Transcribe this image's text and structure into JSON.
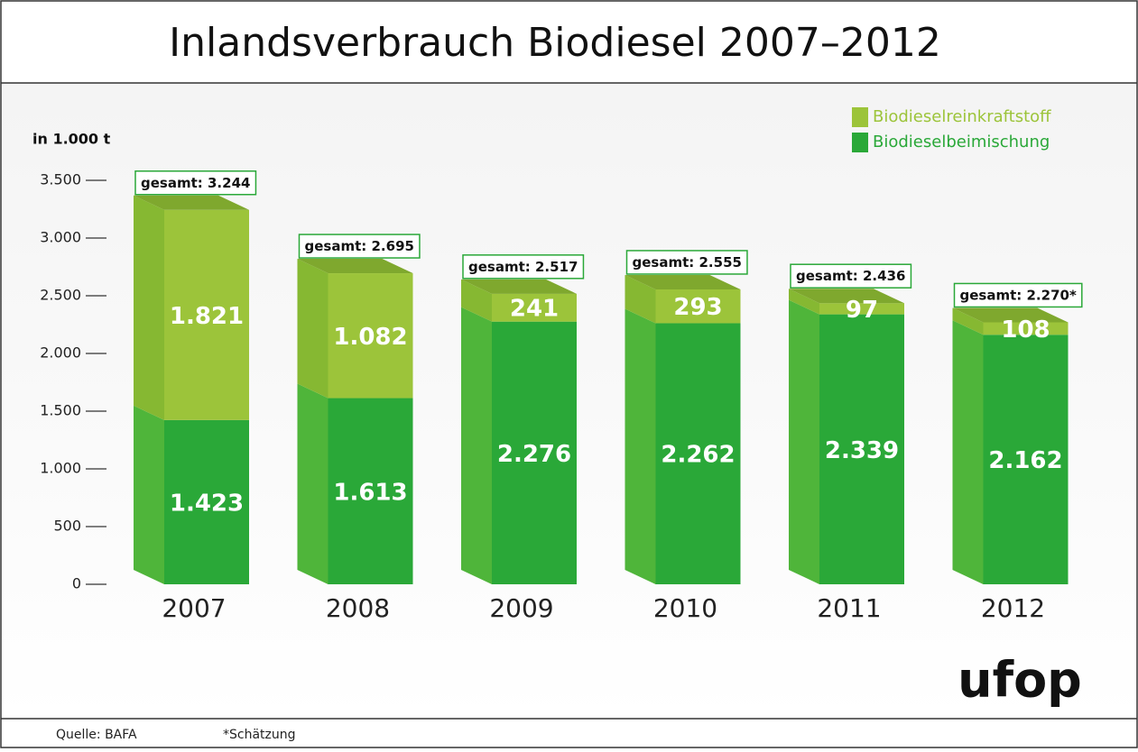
{
  "chart_data": {
    "type": "stacked-bar-3d",
    "title": "Inlandsverbrauch Biodiesel 2007–2012",
    "y_label": "in 1.000 t",
    "categories": [
      "2007",
      "2008",
      "2009",
      "2010",
      "2011",
      "2012"
    ],
    "series": [
      {
        "name": "Biodieselbeimischung",
        "color": "#2aa838",
        "side_color": "#4fb53a",
        "values": [
          1423,
          1613,
          2276,
          2262,
          2339,
          2162
        ],
        "value_labels": [
          "1.423",
          "1.613",
          "2.276",
          "2.262",
          "2.339",
          "2.162"
        ]
      },
      {
        "name": "Biodieselreinkraftstoff",
        "color": "#9cc43a",
        "side_color": "#86b832",
        "top_color": "#7fa82e",
        "values": [
          1821,
          1082,
          241,
          293,
          97,
          108
        ],
        "value_labels": [
          "1.821",
          "1.082",
          "241",
          "293",
          "97",
          "108"
        ]
      }
    ],
    "totals": {
      "prefix": "gesamt:",
      "values": [
        3244,
        2695,
        2517,
        2555,
        2436,
        2270
      ],
      "value_labels": [
        "3.244",
        "2.695",
        "2.517",
        "2.555",
        "2.436",
        "2.270*"
      ]
    },
    "ylim": [
      0,
      3500
    ],
    "yticks": [
      0,
      500,
      {
        "value": 1000,
        "label": "1.000"
      },
      {
        "value": 1500,
        "label": "1.500"
      },
      {
        "value": 2000,
        "label": "2.000"
      },
      {
        "value": 2500,
        "label": "2.500"
      },
      {
        "value": 3000,
        "label": "3.000"
      },
      {
        "value": 3500,
        "label": "3.500"
      }
    ],
    "legend_position": "upper right",
    "source": "Quelle: BAFA",
    "footnote": "*Schätzung",
    "logo": "ufop"
  }
}
